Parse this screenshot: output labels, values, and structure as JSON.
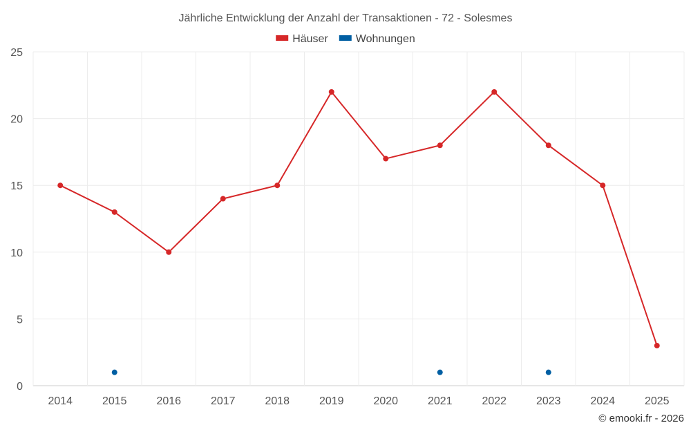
{
  "chart_data": {
    "type": "line",
    "title": "Jährliche Entwicklung der Anzahl der Transaktionen - 72 - Solesmes",
    "categories": [
      "2014",
      "2015",
      "2016",
      "2017",
      "2018",
      "2019",
      "2020",
      "2021",
      "2022",
      "2023",
      "2024",
      "2025"
    ],
    "ylim": [
      0,
      25
    ],
    "yticks": [
      0,
      5,
      10,
      15,
      20,
      25
    ],
    "grid": true,
    "legend_position": "top-center",
    "series": [
      {
        "name": "Häuser",
        "color": "#d62728",
        "mode": "line+markers",
        "values": [
          15,
          13,
          10,
          14,
          15,
          22,
          17,
          18,
          22,
          18,
          15,
          3
        ]
      },
      {
        "name": "Wohnungen",
        "color": "#005fa3",
        "mode": "markers",
        "values": [
          null,
          1,
          null,
          null,
          null,
          null,
          null,
          1,
          null,
          1,
          null,
          null
        ]
      }
    ]
  },
  "credit": "© emooki.fr - 2026"
}
